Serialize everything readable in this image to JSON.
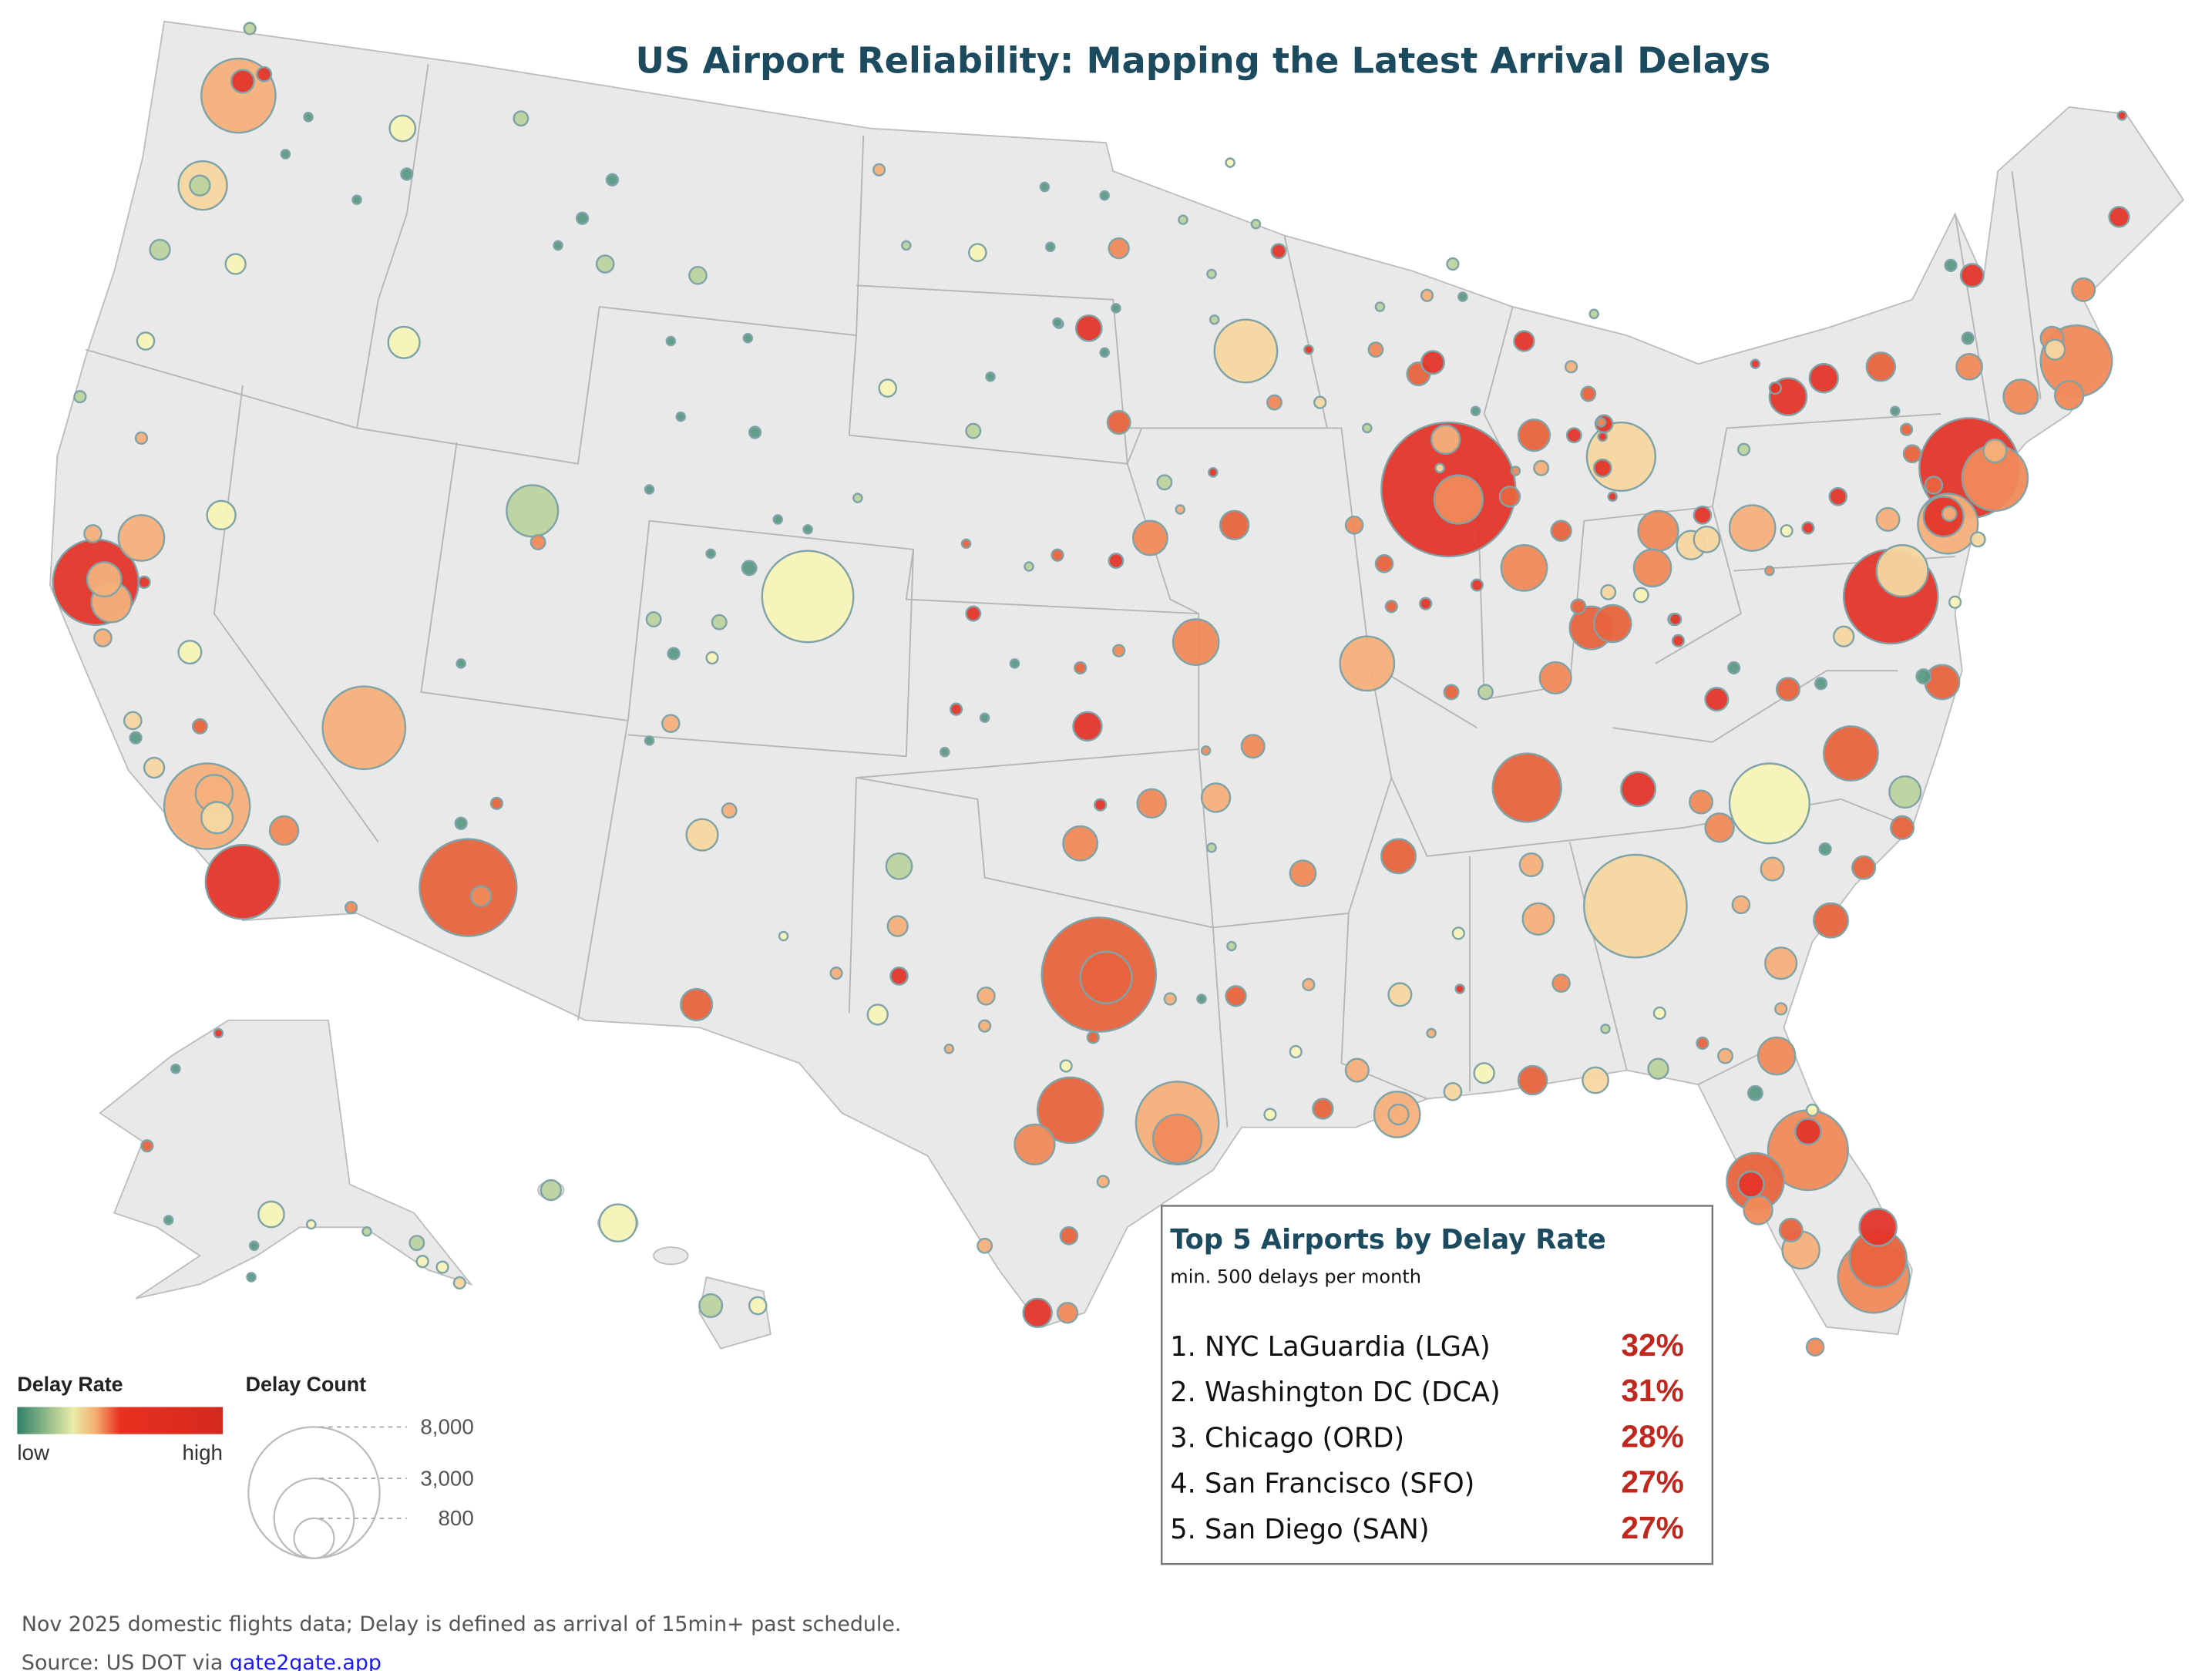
{
  "title": "US Airport Reliability: Mapping the Latest Arrival Delays",
  "legend": {
    "rate_title": "Delay Rate",
    "rate_low": "low",
    "rate_high": "high",
    "rate_colors": [
      "#2e8068",
      "#e8eca8",
      "#f5b070",
      "#e8301f",
      "#d42a1e"
    ],
    "count_title": "Delay Count",
    "count_levels": [
      "8,000",
      "3,000",
      "800"
    ]
  },
  "top5": {
    "title": "Top 5 Airports by Delay Rate",
    "subtitle": "min. 500 delays per month",
    "rows": [
      {
        "label": "1. NYC LaGuardia (LGA)",
        "value": "32%"
      },
      {
        "label": "2. Washington DC (DCA)",
        "value": "31%"
      },
      {
        "label": "3. Chicago (ORD)",
        "value": "28%"
      },
      {
        "label": "4. San Francisco (SFO)",
        "value": "27%"
      },
      {
        "label": "5. San Diego (SAN)",
        "value": "27%"
      }
    ]
  },
  "footer": {
    "note": "Nov 2025 domestic flights data; Delay is defined as arrival of 15min+ past schedule.",
    "source_prefix": "Source: US DOT via ",
    "source_link": "gate2gate.app"
  },
  "colors": {
    "title": "#1c4a5e",
    "value_red": "#c0281f",
    "land": "#e9e9e9",
    "link": "#1a1aee"
  }
}
